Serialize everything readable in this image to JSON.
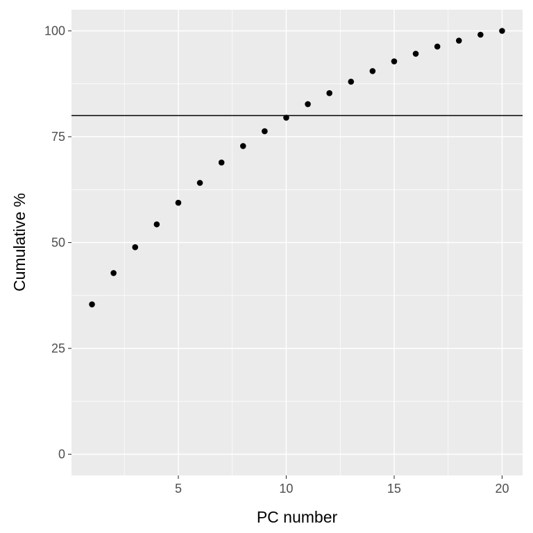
{
  "chart_data": {
    "type": "scatter",
    "title": "",
    "xlabel": "PC number",
    "ylabel": "Cumulative %",
    "x": [
      1,
      2,
      3,
      4,
      5,
      6,
      7,
      8,
      9,
      10,
      11,
      12,
      13,
      14,
      15,
      16,
      17,
      18,
      19,
      20
    ],
    "series": [
      {
        "values": [
          35.4,
          42.8,
          48.9,
          54.3,
          59.4,
          64.1,
          68.9,
          72.8,
          76.3,
          79.5,
          82.7,
          85.3,
          88.0,
          90.5,
          92.8,
          94.6,
          96.3,
          97.7,
          99.1,
          100.0
        ],
        "color": "#000000"
      }
    ],
    "xlim": [
      0.05,
      20.95
    ],
    "ylim": [
      -5,
      105
    ],
    "x_ticks": [
      5,
      10,
      15,
      20
    ],
    "y_ticks": [
      0,
      25,
      50,
      75,
      100
    ],
    "x_tick_labels": [
      "5",
      "10",
      "15",
      "20"
    ],
    "y_tick_labels": [
      "0",
      "25",
      "50",
      "75",
      "100"
    ],
    "reference_line": {
      "orientation": "horizontal",
      "y": 80,
      "color": "#000000"
    },
    "grid": true,
    "legend": "none",
    "background_color": "#EBEBEB"
  }
}
